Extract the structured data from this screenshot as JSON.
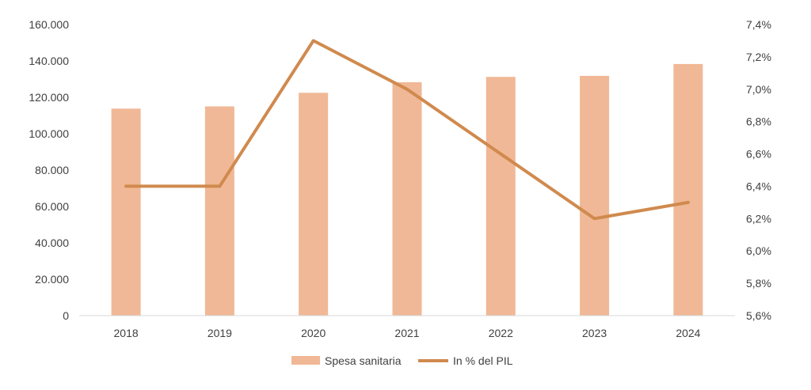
{
  "chart_data": {
    "type": "bar",
    "categories": [
      "2018",
      "2019",
      "2020",
      "2021",
      "2022",
      "2023",
      "2024"
    ],
    "series": [
      {
        "name": "Spesa sanitaria",
        "type": "bar",
        "axis": "left",
        "color": "#f0b896",
        "values": [
          113800,
          115000,
          122500,
          128300,
          131200,
          131800,
          138300
        ]
      },
      {
        "name": "In % del PIL",
        "type": "line",
        "axis": "right",
        "color": "#d08a4e",
        "values": [
          6.4,
          6.4,
          7.3,
          7.0,
          6.6,
          6.2,
          6.3
        ]
      }
    ],
    "y_left": {
      "min": 0,
      "max": 160000,
      "tick_labels": [
        "0",
        "20.000",
        "40.000",
        "60.000",
        "80.000",
        "100.000",
        "120.000",
        "140.000",
        "160.000"
      ]
    },
    "y_right": {
      "min": 5.6,
      "max": 7.4,
      "tick_labels": [
        "5,6%",
        "5,8%",
        "6,0%",
        "6,2%",
        "6,4%",
        "6,6%",
        "6,8%",
        "7,0%",
        "7,2%",
        "7,4%"
      ]
    },
    "grid": false,
    "legend": {
      "position": "bottom-center"
    },
    "axis_color": "#d9d9d9",
    "text_color": "#404040"
  }
}
